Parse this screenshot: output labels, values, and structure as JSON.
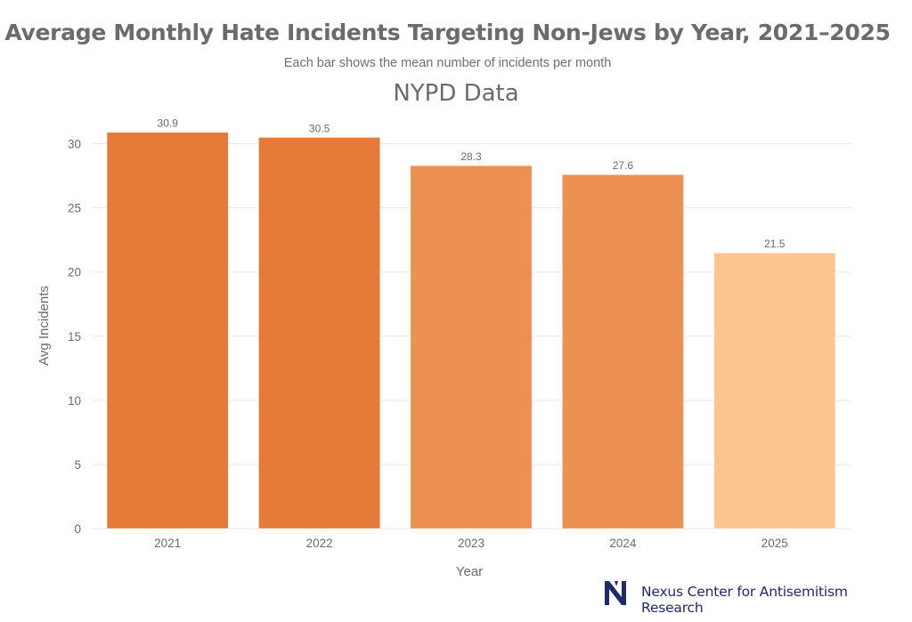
{
  "chart_data": {
    "type": "bar",
    "title": "Average Monthly Hate Incidents Targeting Non-Jews by Year, 2021–2025",
    "subtitle": "Each bar shows the mean number of incidents per month",
    "panel_title": "NYPD Data",
    "xlabel": "Year",
    "ylabel": "Avg Incidents",
    "categories": [
      "2021",
      "2022",
      "2023",
      "2024",
      "2025"
    ],
    "values": [
      30.9,
      30.5,
      28.3,
      27.6,
      21.5
    ],
    "value_labels": [
      "30.9",
      "30.5",
      "28.3",
      "27.6",
      "21.5"
    ],
    "bar_colors": [
      "#e67a38",
      "#e67a38",
      "#ec9152",
      "#ec9152",
      "#fcc491"
    ],
    "ylim": [
      0,
      31.5
    ],
    "yticks": [
      0,
      5,
      10,
      15,
      20,
      25,
      30
    ],
    "grid": true,
    "legend": "none"
  },
  "footer": {
    "org_name": "Nexus Center for Antisemitism Research",
    "logo_icon": "n-monogram-logo",
    "logo_color": "#1f2a6e"
  }
}
